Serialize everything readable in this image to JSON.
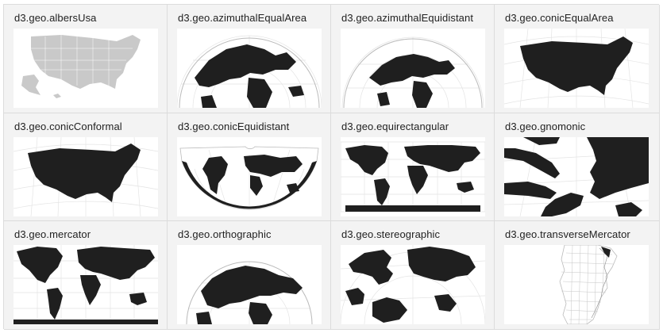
{
  "gallery": {
    "projections": [
      {
        "label": "d3.geo.albersUsa"
      },
      {
        "label": "d3.geo.azimuthalEqualArea"
      },
      {
        "label": "d3.geo.azimuthalEquidistant"
      },
      {
        "label": "d3.geo.conicEqualArea"
      },
      {
        "label": "d3.geo.conicConformal"
      },
      {
        "label": "d3.geo.conicEquidistant"
      },
      {
        "label": "d3.geo.equirectangular"
      },
      {
        "label": "d3.geo.gnomonic"
      },
      {
        "label": "d3.geo.mercator"
      },
      {
        "label": "d3.geo.orthographic"
      },
      {
        "label": "d3.geo.stereographic"
      },
      {
        "label": "d3.geo.transverseMercator"
      }
    ]
  }
}
